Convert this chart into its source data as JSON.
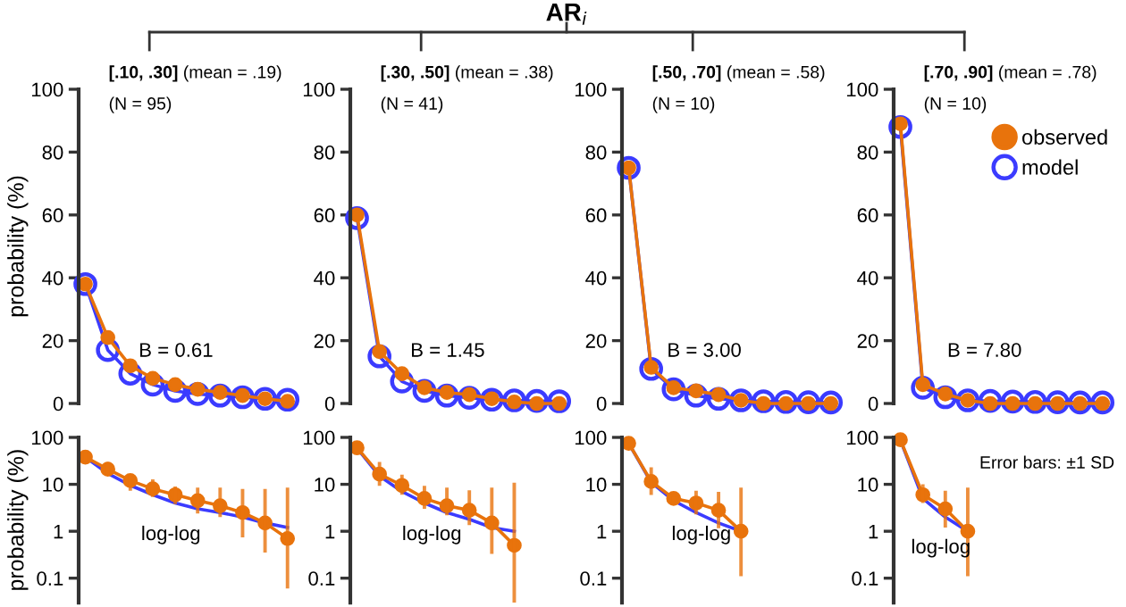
{
  "chart_data": [
    {
      "type": "line",
      "title": "[.10, .30] (mean = .19)",
      "subtitle": "(N = 95)",
      "ylabel": "probability (%)",
      "annotations": [
        "AR$_{i}$",
        "B = 0.61"
      ],
      "categories": [
        null,
        null,
        null,
        null,
        null,
        null,
        null,
        null,
        null,
        null
      ],
      "ylim": [
        0,
        100
      ],
      "yticks": [
        0,
        20,
        40,
        60,
        80,
        100
      ],
      "tick_labels": "y",
      "grid": false,
      "legend": false,
      "series": [
        {
          "color": "#e8730c",
          "marker": "circle",
          "values": [
            38,
            21,
            12,
            8,
            6,
            4.5,
            3.5,
            2.5,
            1.5,
            0.7
          ]
        },
        {
          "color": "#3b3bff",
          "marker": "circle",
          "values": [
            38,
            17,
            9.5,
            6,
            4,
            3,
            2.5,
            2,
            1.5,
            1.2
          ]
        }
      ]
    },
    {
      "type": "line",
      "title": "[.30, .50] (mean = .38)",
      "subtitle": "(N = 41)",
      "annotations": [
        "B = 1.45"
      ],
      "categories": [
        null,
        null,
        null,
        null,
        null,
        null,
        null,
        null,
        null,
        null
      ],
      "ylim": [
        0,
        100
      ],
      "yticks": [
        0,
        20,
        40,
        60,
        80,
        100
      ],
      "tick_labels": "y",
      "grid": false,
      "legend": false,
      "series": [
        {
          "color": "#e8730c",
          "marker": "circle",
          "values": [
            60,
            16.5,
            9.5,
            5,
            3.5,
            2.8,
            1.5,
            0.5,
            0,
            0
          ]
        },
        {
          "color": "#3b3bff",
          "marker": "circle",
          "values": [
            59,
            15,
            7,
            4,
            2.5,
            1.8,
            1.2,
            1,
            0.8,
            0.7
          ]
        }
      ]
    },
    {
      "type": "line",
      "title": "[.50, .70] (mean = .58)",
      "subtitle": "(N = 10)",
      "annotations": [
        "B = 3.00"
      ],
      "categories": [
        null,
        null,
        null,
        null,
        null,
        null,
        null,
        null,
        null,
        null
      ],
      "ylim": [
        0,
        100
      ],
      "yticks": [
        0,
        20,
        40,
        60,
        80,
        100
      ],
      "tick_labels": "y",
      "grid": false,
      "legend": false,
      "series": [
        {
          "color": "#e8730c",
          "marker": "circle",
          "values": [
            75,
            11.5,
            5,
            4,
            2.8,
            1,
            0,
            0,
            0,
            0
          ]
        },
        {
          "color": "#3b3bff",
          "marker": "circle",
          "values": [
            75,
            11,
            4.5,
            2.5,
            1.5,
            1,
            0.7,
            0.5,
            0.4,
            0.3
          ]
        }
      ]
    },
    {
      "type": "line",
      "title": "[.70, .90] (mean = .78)",
      "subtitle": "(N = 10)",
      "annotations": [
        "B = 7.80"
      ],
      "categories": [
        null,
        null,
        null,
        null,
        null,
        null,
        null,
        null,
        null,
        null
      ],
      "ylim": [
        0,
        100
      ],
      "yticks": [
        0,
        20,
        40,
        60,
        80,
        100
      ],
      "tick_labels": "y",
      "grid": false,
      "legend": "top right",
      "series": [
        {
          "name": "observed",
          "color": "#e8730c",
          "marker": "circle",
          "values": [
            89,
            6,
            3,
            1,
            0,
            0,
            0,
            0,
            0,
            0
          ]
        },
        {
          "name": "model",
          "color": "#3b3bff",
          "marker": "circle",
          "values": [
            88,
            5,
            2,
            1,
            0.8,
            0.6,
            0.5,
            0.4,
            0.3,
            0.3
          ]
        }
      ]
    },
    {
      "type": "line",
      "ylabel": "probability (%)",
      "annotations": [
        "log-log"
      ],
      "categories": [
        null,
        null,
        null,
        null,
        null,
        null,
        null,
        null,
        null,
        null
      ],
      "log": true,
      "ylim": [
        0.03,
        100
      ],
      "yticks": [
        0.1,
        1,
        10,
        100
      ],
      "tick_labels": "y",
      "grid": false,
      "series": [
        {
          "color": "#e8730c",
          "marker": "circle",
          "values": [
            38,
            21,
            12,
            8,
            6,
            4.5,
            3.5,
            2.5,
            1.5,
            0.7
          ],
          "errors": [
            [
              32,
              47
            ],
            [
              16,
              30
            ],
            [
              7.3,
              16
            ],
            [
              5.4,
              12.8
            ],
            [
              3.8,
              9
            ],
            [
              2.4,
              8.5
            ],
            [
              2,
              8.5
            ],
            [
              0.74,
              8
            ],
            [
              0.35,
              8
            ],
            [
              0.06,
              8.5
            ]
          ]
        },
        {
          "color": "#3b3bff",
          "marker": "none",
          "values": [
            38,
            17,
            9.5,
            6,
            4,
            3,
            2.5,
            2,
            1.5,
            1.2
          ]
        }
      ]
    },
    {
      "type": "line",
      "annotations": [
        "log-log"
      ],
      "categories": [
        null,
        null,
        null,
        null,
        null,
        null,
        null,
        null
      ],
      "log": true,
      "ylim": [
        0.03,
        100
      ],
      "yticks": [
        0.1,
        1,
        10,
        100
      ],
      "tick_labels": "y",
      "grid": false,
      "series": [
        {
          "color": "#e8730c",
          "marker": "circle",
          "values": [
            60,
            16.5,
            9.5,
            5,
            3.5,
            2.8,
            1.5,
            0.5
          ],
          "errors": [
            null,
            [
              9.3,
              30
            ],
            [
              6,
              16
            ],
            [
              3,
              9.3
            ],
            [
              2.2,
              8.5
            ],
            [
              1.35,
              7.5
            ],
            [
              0.33,
              8.5
            ],
            [
              0.03,
              10.8
            ]
          ]
        },
        {
          "color": "#3b3bff",
          "marker": "none",
          "values": [
            59,
            15,
            7,
            4,
            2.5,
            1.8,
            1.2,
            1
          ]
        }
      ]
    },
    {
      "type": "line",
      "annotations": [
        "log-log"
      ],
      "categories": [
        null,
        null,
        null,
        null,
        null,
        null
      ],
      "log": true,
      "ylim": [
        0.03,
        100
      ],
      "yticks": [
        0.1,
        1,
        10,
        100
      ],
      "tick_labels": "y",
      "grid": false,
      "series": [
        {
          "color": "#e8730c",
          "marker": "circle",
          "values": [
            75,
            11.5,
            5,
            4,
            2.8,
            1
          ],
          "errors": [
            null,
            [
              5.9,
              23
            ],
            [
              4.4,
              5.4
            ],
            [
              2.3,
              7.3
            ],
            [
              1.16,
              6.9
            ],
            [
              0.11,
              8.5
            ]
          ]
        },
        {
          "color": "#3b3bff",
          "marker": "none",
          "values": [
            75,
            11,
            4.5,
            2.5,
            1.5,
            1
          ]
        }
      ]
    },
    {
      "type": "line",
      "annotations": [
        "log-log",
        "Error bars: ±1 SD"
      ],
      "categories": [
        null,
        null,
        null,
        null
      ],
      "log": true,
      "ylim": [
        0.03,
        100
      ],
      "yticks": [
        0.1,
        1,
        10,
        100
      ],
      "tick_labels": "y",
      "grid": false,
      "series": [
        {
          "color": "#e8730c",
          "marker": "circle",
          "values": [
            89,
            6,
            3,
            1
          ],
          "errors": [
            null,
            [
              4,
              10
            ],
            [
              1.2,
              7.3
            ],
            [
              0.11,
              8.5
            ]
          ]
        },
        {
          "color": "#3b3bff",
          "marker": "none",
          "values": [
            88,
            5,
            2,
            1
          ]
        }
      ]
    }
  ]
}
